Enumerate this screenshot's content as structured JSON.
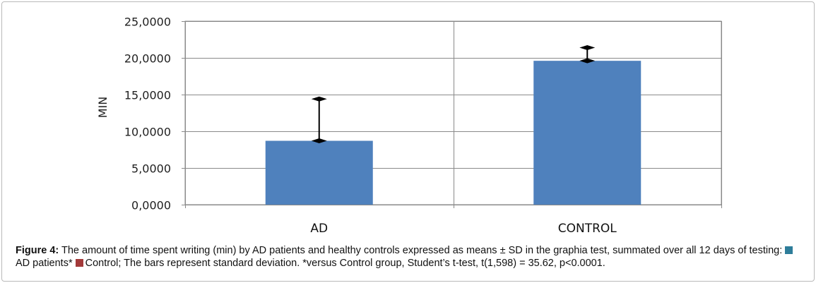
{
  "colors": {
    "bar": "#4f81bd",
    "grid": "#8a8a8a",
    "error_bar": "#000000",
    "legend_ad": "#2e7d9a",
    "legend_control": "#a33a3a"
  },
  "chart_data": {
    "type": "bar",
    "categories": [
      "AD",
      "CONTROL"
    ],
    "values": [
      8.7,
      19.6
    ],
    "error_upper": [
      14.4,
      21.4
    ],
    "title": "",
    "xlabel": "",
    "ylabel": "MIN",
    "ylim": [
      0,
      25
    ],
    "yticks": [
      0,
      5,
      10,
      15,
      20,
      25
    ],
    "ytick_labels": [
      "0,0000",
      "5,0000",
      "10,0000",
      "15,0000",
      "20,0000",
      "25,0000"
    ],
    "grid": true,
    "legend": "none"
  },
  "caption": {
    "figure_label": "Figure 4:",
    "text_main": " The amount of time spent writing (min) by AD patients and healthy controls expressed as means ± SD in the graphia test, summated over all 12 days of testing: ",
    "legend_ad": "AD patients*",
    "legend_control": "Control",
    "text_end": "; The bars represent standard deviation. *versus Control group, Student’s t-test, t(1,598) = 35.62, p<0.0001."
  }
}
